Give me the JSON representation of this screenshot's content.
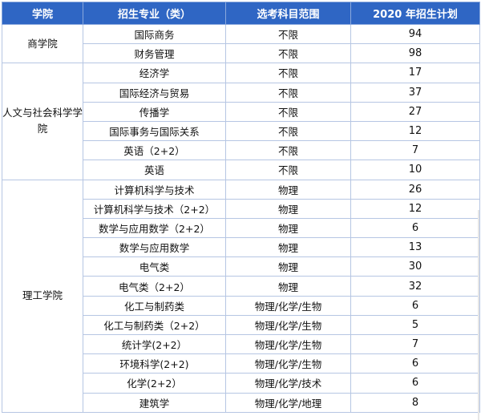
{
  "table": {
    "headers": [
      "学院",
      "招生专业（类）",
      "选考科目范围",
      "2020 年招生计划"
    ],
    "schools": [
      "商学院",
      "人文与社会科学学院",
      "理工学院"
    ],
    "rows": [
      {
        "major": "国际商务",
        "subjects": "不限",
        "plan": "94"
      },
      {
        "major": "财务管理",
        "subjects": "不限",
        "plan": "98"
      },
      {
        "major": "经济学",
        "subjects": "不限",
        "plan": "17"
      },
      {
        "major": "国际经济与贸易",
        "subjects": "不限",
        "plan": "37"
      },
      {
        "major": "传播学",
        "subjects": "不限",
        "plan": "27"
      },
      {
        "major": "国际事务与国际关系",
        "subjects": "不限",
        "plan": "12"
      },
      {
        "major": "英语（2+2）",
        "subjects": "不限",
        "plan": "7"
      },
      {
        "major": "英语",
        "subjects": "不限",
        "plan": "10"
      },
      {
        "major": "计算机科学与技术",
        "subjects": "物理",
        "plan": "26"
      },
      {
        "major": "计算机科学与技术（2+2）",
        "subjects": "物理",
        "plan": "12"
      },
      {
        "major": "数学与应用数学（2+2）",
        "subjects": "物理",
        "plan": "6"
      },
      {
        "major": "数学与应用数学",
        "subjects": "物理",
        "plan": "13"
      },
      {
        "major": "电气类",
        "subjects": "物理",
        "plan": "30"
      },
      {
        "major": "电气类（2+2）",
        "subjects": "物理",
        "plan": "32"
      },
      {
        "major": "化工与制药类",
        "subjects": "物理/化学/生物",
        "plan": "6"
      },
      {
        "major": "化工与制药类（2+2）",
        "subjects": "物理/化学/生物",
        "plan": "5"
      },
      {
        "major": "统计学(2+2）",
        "subjects": "物理/化学/生物",
        "plan": "7"
      },
      {
        "major": "环境科学(2+2)",
        "subjects": "物理/化学/生物",
        "plan": "6"
      },
      {
        "major": "化学(2+2）",
        "subjects": "物理/化学/技术",
        "plan": "6"
      },
      {
        "major": "建筑学",
        "subjects": "物理/化学/地理",
        "plan": "8"
      }
    ]
  }
}
